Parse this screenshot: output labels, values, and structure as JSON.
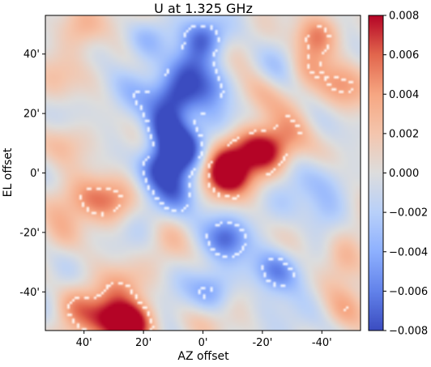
{
  "chart_data": {
    "type": "heatmap",
    "title": "U at 1.325 GHz",
    "xlabel": "AZ offset",
    "ylabel": "EL offset",
    "x_range": [
      53,
      -53
    ],
    "y_range": [
      -53,
      53
    ],
    "x_ticks": [
      {
        "value": 40,
        "label": "40'"
      },
      {
        "value": 20,
        "label": "20'"
      },
      {
        "value": 0,
        "label": "0'"
      },
      {
        "value": -20,
        "label": "-20'"
      },
      {
        "value": -40,
        "label": "-40'"
      }
    ],
    "y_ticks": [
      {
        "value": 40,
        "label": "40'"
      },
      {
        "value": 20,
        "label": "20'"
      },
      {
        "value": 0,
        "label": "0'"
      },
      {
        "value": -20,
        "label": "-20'"
      },
      {
        "value": -40,
        "label": "-40'"
      }
    ],
    "colorbar": {
      "colormap": "coolwarm",
      "range": [
        -0.008,
        0.008
      ],
      "ticks": [
        {
          "value": 0.008,
          "label": "0.008"
        },
        {
          "value": 0.006,
          "label": "0.006"
        },
        {
          "value": 0.004,
          "label": "0.004"
        },
        {
          "value": 0.002,
          "label": "0.002"
        },
        {
          "value": 0.0,
          "label": "0.000"
        },
        {
          "value": -0.002,
          "label": "−0.002"
        },
        {
          "value": -0.004,
          "label": "−0.004"
        },
        {
          "value": -0.006,
          "label": "−0.006"
        },
        {
          "value": -0.008,
          "label": "−0.008"
        }
      ]
    },
    "contour_levels": [
      -0.004,
      0.004
    ],
    "contour_color": "#ffffff",
    "contour_style": "dashed",
    "features": [
      {
        "az": 0,
        "el": 45,
        "value": -0.0075
      },
      {
        "az": 5,
        "el": 35,
        "value": -0.006
      },
      {
        "az": 10,
        "el": 25,
        "value": -0.0065
      },
      {
        "az": 13,
        "el": 15,
        "value": -0.0075
      },
      {
        "az": 6,
        "el": 8,
        "value": -0.0078
      },
      {
        "az": 14,
        "el": 2,
        "value": -0.007
      },
      {
        "az": 8,
        "el": -6,
        "value": -0.006
      },
      {
        "az": 20,
        "el": 45,
        "value": -0.003
      },
      {
        "az": -2,
        "el": 28,
        "value": -0.004
      },
      {
        "az": -5,
        "el": 18,
        "value": -0.003
      },
      {
        "az": -8,
        "el": -22,
        "value": -0.007
      },
      {
        "az": -25,
        "el": -33,
        "value": -0.006
      },
      {
        "az": -3,
        "el": -40,
        "value": -0.005
      },
      {
        "az": -20,
        "el": -45,
        "value": -0.003
      },
      {
        "az": -8,
        "el": -1,
        "value": 0.0082
      },
      {
        "az": -8,
        "el": 5,
        "value": 0.004
      },
      {
        "az": -22,
        "el": 7,
        "value": 0.006
      },
      {
        "az": -16,
        "el": 10,
        "value": 0.0045
      },
      {
        "az": 24,
        "el": -51,
        "value": 0.0082
      },
      {
        "az": 33,
        "el": -48,
        "value": 0.005
      },
      {
        "az": 43,
        "el": -45,
        "value": 0.004
      },
      {
        "az": 28,
        "el": -38,
        "value": 0.004
      },
      {
        "az": 47,
        "el": -22,
        "value": 0.003
      },
      {
        "az": 38,
        "el": -8,
        "value": 0.003
      },
      {
        "az": 30,
        "el": -10,
        "value": 0.0025
      },
      {
        "az": 40,
        "el": 48,
        "value": 0.003
      },
      {
        "az": -38,
        "el": 46,
        "value": 0.004
      },
      {
        "az": -35,
        "el": 35,
        "value": 0.0035
      },
      {
        "az": -45,
        "el": 30,
        "value": 0.003
      },
      {
        "az": -30,
        "el": 12,
        "value": 0.0025
      },
      {
        "az": -47,
        "el": -28,
        "value": 0.003
      },
      {
        "az": -48,
        "el": -47,
        "value": 0.004
      },
      {
        "az": 10,
        "el": -20,
        "value": 0.002
      },
      {
        "az": -2,
        "el": -52,
        "value": 0.002
      },
      {
        "az": 48,
        "el": 10,
        "value": 0.0025
      },
      {
        "az": -20,
        "el": 28,
        "value": 0.0025
      },
      {
        "az": -42,
        "el": 0,
        "value": -0.002
      },
      {
        "az": 45,
        "el": -35,
        "value": -0.001
      },
      {
        "az": -40,
        "el": -15,
        "value": -0.002
      },
      {
        "az": 30,
        "el": 30,
        "value": -0.001
      }
    ]
  }
}
